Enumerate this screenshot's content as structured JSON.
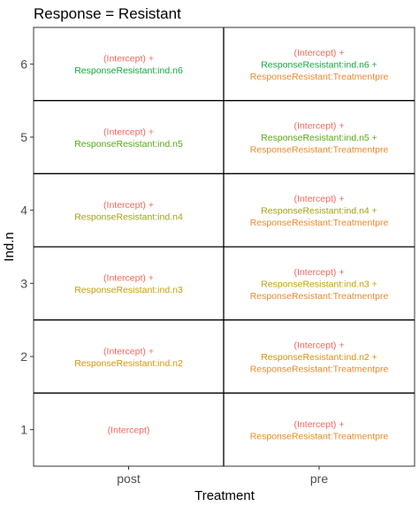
{
  "chart_data": {
    "type": "table",
    "title": "Response = Resistant",
    "xlabel": "Treatment",
    "ylabel": "Ind.n",
    "x_categories": [
      "post",
      "pre"
    ],
    "y_categories": [
      "1",
      "2",
      "3",
      "4",
      "5",
      "6"
    ],
    "colors": {
      "intercept": "#f0695f",
      "ind_n6": "#12a83e",
      "ind_n5": "#56a814",
      "ind_n4": "#9ea30e",
      "ind_n3": "#c4a00b",
      "ind_n2": "#d8930f",
      "treatment": "#e98a2d"
    },
    "cells": [
      {
        "x": "post",
        "y": "6",
        "lines": [
          {
            "text": "(Intercept) +",
            "color_key": "intercept"
          },
          {
            "text": "ResponseResistant:ind.n6",
            "color_key": "ind_n6"
          }
        ]
      },
      {
        "x": "pre",
        "y": "6",
        "lines": [
          {
            "text": "(Intercept) +",
            "color_key": "intercept"
          },
          {
            "text": "ResponseResistant:ind.n6 +",
            "color_key": "ind_n6"
          },
          {
            "text": "ResponseResistant:Treatmentpre",
            "color_key": "treatment"
          }
        ]
      },
      {
        "x": "post",
        "y": "5",
        "lines": [
          {
            "text": "(Intercept) +",
            "color_key": "intercept"
          },
          {
            "text": "ResponseResistant:ind.n5",
            "color_key": "ind_n5"
          }
        ]
      },
      {
        "x": "pre",
        "y": "5",
        "lines": [
          {
            "text": "(Intercept) +",
            "color_key": "intercept"
          },
          {
            "text": "ResponseResistant:ind.n5 +",
            "color_key": "ind_n5"
          },
          {
            "text": "ResponseResistant:Treatmentpre",
            "color_key": "treatment"
          }
        ]
      },
      {
        "x": "post",
        "y": "4",
        "lines": [
          {
            "text": "(Intercept) +",
            "color_key": "intercept"
          },
          {
            "text": "ResponseResistant:ind.n4",
            "color_key": "ind_n4"
          }
        ]
      },
      {
        "x": "pre",
        "y": "4",
        "lines": [
          {
            "text": "(Intercept) +",
            "color_key": "intercept"
          },
          {
            "text": "ResponseResistant:ind.n4 +",
            "color_key": "ind_n4"
          },
          {
            "text": "ResponseResistant:Treatmentpre",
            "color_key": "treatment"
          }
        ]
      },
      {
        "x": "post",
        "y": "3",
        "lines": [
          {
            "text": "(Intercept) +",
            "color_key": "intercept"
          },
          {
            "text": "ResponseResistant:ind.n3",
            "color_key": "ind_n3"
          }
        ]
      },
      {
        "x": "pre",
        "y": "3",
        "lines": [
          {
            "text": "(Intercept) +",
            "color_key": "intercept"
          },
          {
            "text": "ResponseResistant:ind.n3 +",
            "color_key": "ind_n3"
          },
          {
            "text": "ResponseResistant:Treatmentpre",
            "color_key": "treatment"
          }
        ]
      },
      {
        "x": "post",
        "y": "2",
        "lines": [
          {
            "text": "(Intercept) +",
            "color_key": "intercept"
          },
          {
            "text": "ResponseResistant:ind.n2",
            "color_key": "ind_n2"
          }
        ]
      },
      {
        "x": "pre",
        "y": "2",
        "lines": [
          {
            "text": "(Intercept) +",
            "color_key": "intercept"
          },
          {
            "text": "ResponseResistant:ind.n2 +",
            "color_key": "ind_n2"
          },
          {
            "text": "ResponseResistant:Treatmentpre",
            "color_key": "treatment"
          }
        ]
      },
      {
        "x": "post",
        "y": "1",
        "lines": [
          {
            "text": "(Intercept)",
            "color_key": "intercept"
          }
        ]
      },
      {
        "x": "pre",
        "y": "1",
        "lines": [
          {
            "text": "(Intercept) +",
            "color_key": "intercept"
          },
          {
            "text": "ResponseResistant:Treatmentpre",
            "color_key": "treatment"
          }
        ]
      }
    ]
  }
}
